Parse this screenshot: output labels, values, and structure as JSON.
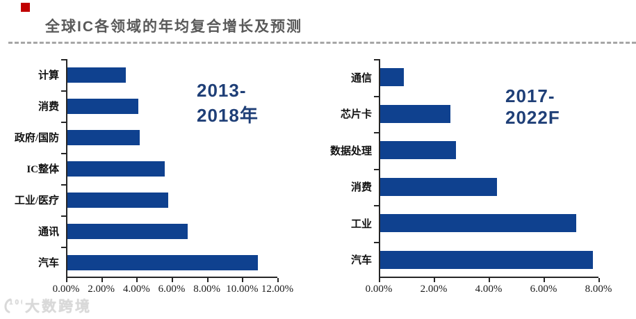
{
  "page": {
    "title": "全球IC各领域的年均复合增长及预测",
    "watermark": "大数跨境",
    "watermark_logo": "100"
  },
  "colors": {
    "bar_blue": "#0f418f",
    "period_label_blue": "#1f3f77",
    "title_gray": "#595959",
    "divider_gray": "#a6a6a6",
    "accent_red": "#c00000",
    "axis_black": "#262626",
    "watermark_gray": "#d9d9d9"
  },
  "chart_data": [
    {
      "type": "bar",
      "orientation": "horizontal",
      "title": "2013-2018年",
      "categories": [
        "计算",
        "消费",
        "政府/国防",
        "IC整体",
        "工业/医疗",
        "通讯",
        "汽车"
      ],
      "values": [
        3.4,
        4.1,
        4.2,
        5.6,
        5.8,
        6.9,
        10.9
      ],
      "unit": "%",
      "xlim": [
        0,
        12
      ],
      "xticks": [
        "0.00%",
        "2.00%",
        "4.00%",
        "6.00%",
        "8.00%",
        "10.00%",
        "12.00%"
      ],
      "grid": false,
      "legend": false,
      "bar_color": "#0f418f",
      "xlabel": "",
      "ylabel": ""
    },
    {
      "type": "bar",
      "orientation": "horizontal",
      "title": "2017-2022F",
      "categories": [
        "通信",
        "芯片卡",
        "数据处理",
        "消费",
        "工业",
        "汽车"
      ],
      "values": [
        0.9,
        2.6,
        2.8,
        4.3,
        7.2,
        7.8
      ],
      "unit": "%",
      "xlim": [
        0,
        8
      ],
      "xticks": [
        "0.00%",
        "2.00%",
        "4.00%",
        "6.00%",
        "8.00%"
      ],
      "grid": false,
      "legend": false,
      "bar_color": "#0f418f",
      "xlabel": "",
      "ylabel": ""
    }
  ]
}
